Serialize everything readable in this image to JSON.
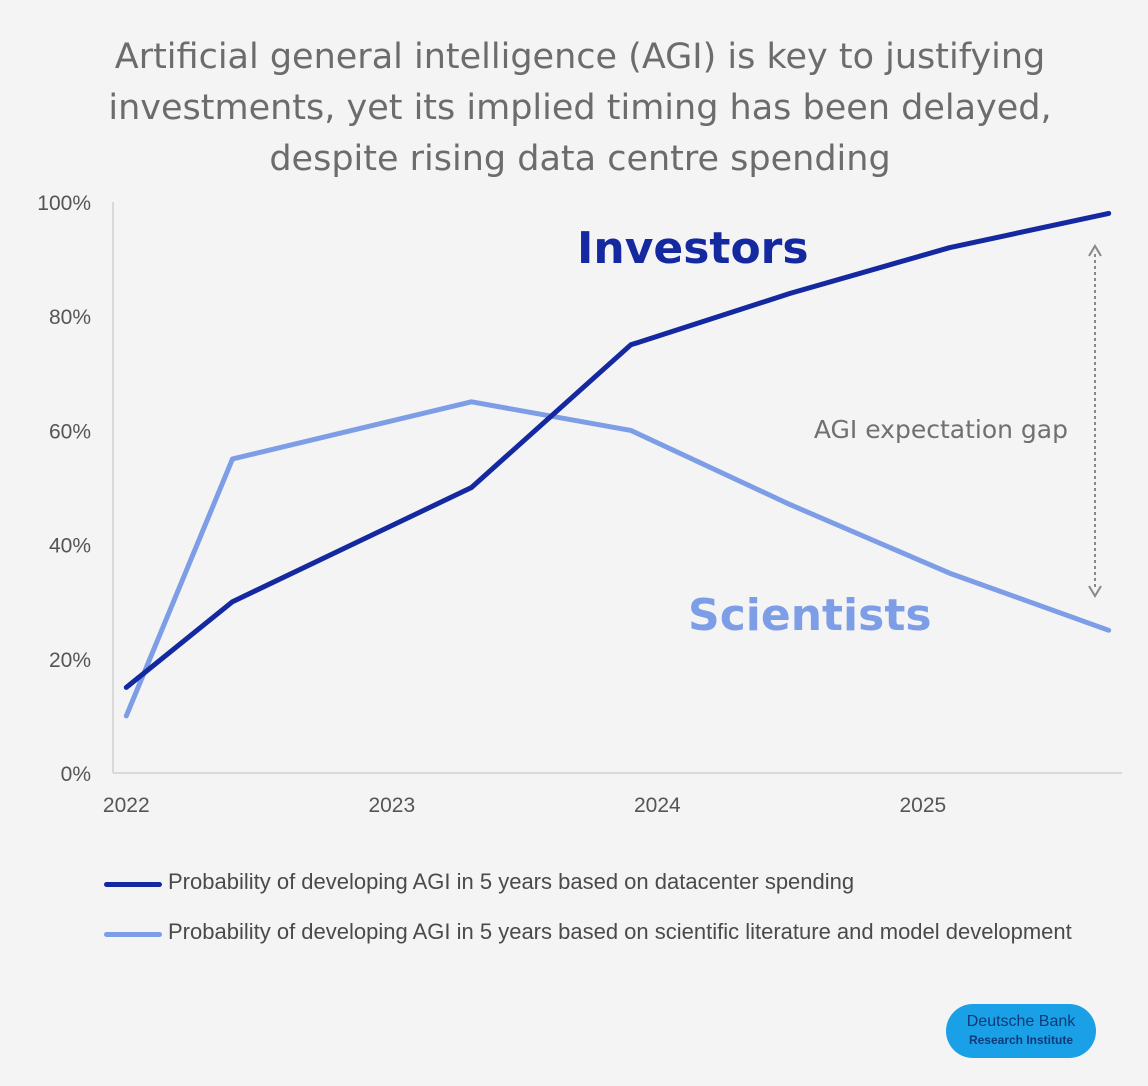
{
  "chart_data": {
    "type": "line",
    "title": "Artificial general intelligence (AGI) is key to justifying investments, yet its implied timing has been delayed, despite rising data centre spending",
    "x": [
      2022.0,
      2022.4,
      2023.3,
      2023.9,
      2024.5,
      2025.1,
      2025.7
    ],
    "x_ticks": [
      "2022",
      "2023",
      "2024",
      "2025"
    ],
    "x_tick_values": [
      2022,
      2023,
      2024,
      2025
    ],
    "xlim": [
      2021.95,
      2025.75
    ],
    "y_ticks": [
      "0%",
      "20%",
      "40%",
      "60%",
      "80%",
      "100%"
    ],
    "y_tick_values": [
      0,
      20,
      40,
      60,
      80,
      100
    ],
    "ylim": [
      0,
      100
    ],
    "series": [
      {
        "name": "Investors",
        "legend": "Probability of developing AGI in 5 years based on datacenter spending",
        "color": "#1428a0",
        "values": [
          15,
          30,
          50,
          75,
          84,
          92,
          98
        ]
      },
      {
        "name": "Scientists",
        "legend": "Probability of developing AGI in 5 years based on scientific literature and model development",
        "color": "#7d9ee6",
        "values": [
          10,
          55,
          65,
          60,
          47,
          35,
          25
        ]
      }
    ],
    "annotation": "AGI expectation gap",
    "source": {
      "line1": "Deutsche Bank",
      "line2": "Research Institute"
    }
  }
}
